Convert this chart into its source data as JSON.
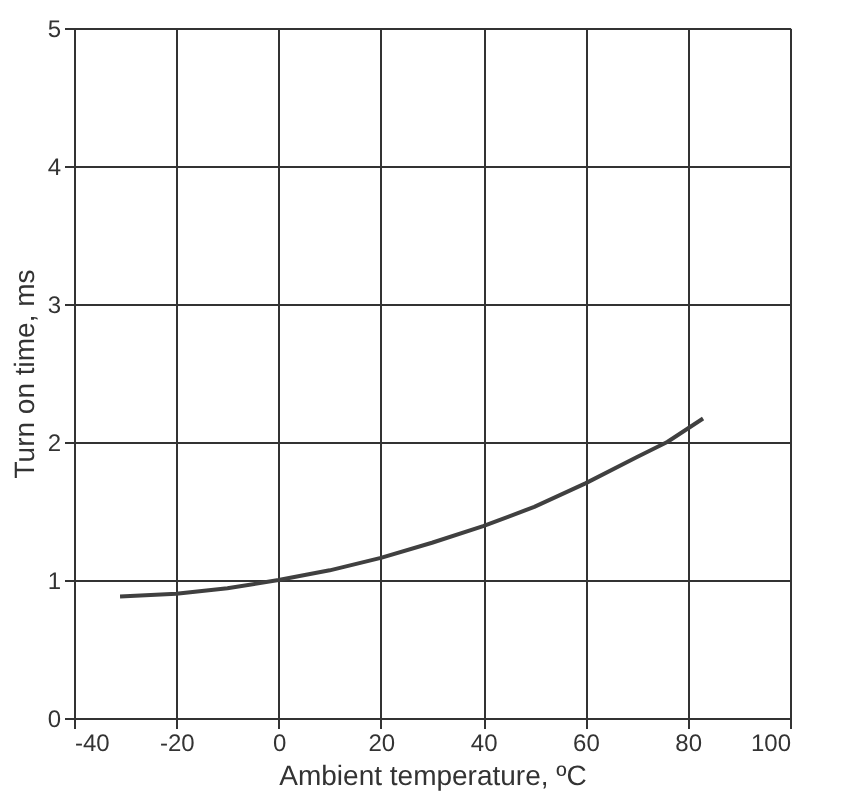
{
  "chart_data": {
    "type": "line",
    "xlabel": "Ambient temperature, ºC",
    "ylabel": "Turn on time, ms",
    "x": [
      -31,
      -20,
      -10,
      0,
      10,
      20,
      30,
      40,
      50,
      60,
      70,
      76,
      83
    ],
    "series": [
      {
        "color": "#404040",
        "values": [
          0.88,
          0.9,
          0.94,
          1.0,
          1.07,
          1.16,
          1.27,
          1.39,
          1.53,
          1.7,
          1.89,
          2.0,
          2.17
        ]
      }
    ],
    "xlim": [
      -40,
      100
    ],
    "xticks": [
      -40,
      -20,
      0,
      20,
      40,
      60,
      80,
      100
    ],
    "ylim": [
      0,
      5
    ],
    "yticks": [
      0,
      1,
      2,
      3,
      4,
      5
    ],
    "grid": true,
    "marker": "none",
    "line_style": "solid"
  }
}
